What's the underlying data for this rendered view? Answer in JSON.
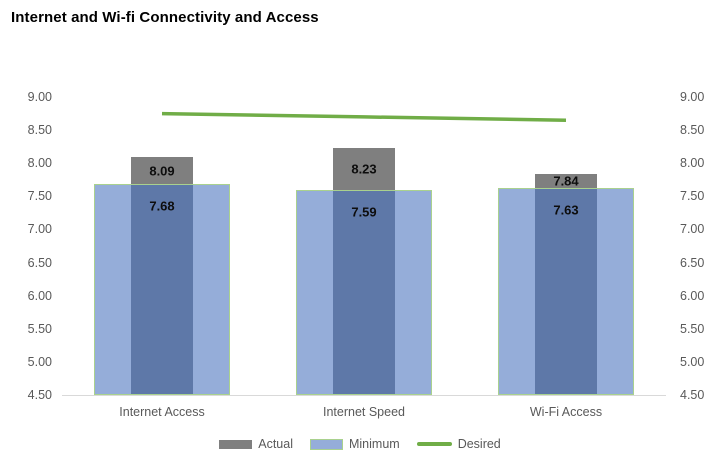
{
  "title": "Internet and Wi-fi Connectivity and Access",
  "chart_data": {
    "type": "bar",
    "title": "Internet and Wi-fi Connectivity and Access",
    "categories": [
      "Internet Access",
      "Internet Speed",
      "Wi-Fi Access"
    ],
    "series": [
      {
        "name": "Actual",
        "type": "bar",
        "values": [
          8.09,
          8.23,
          7.84
        ],
        "color": "#7f7f7f"
      },
      {
        "name": "Minimum",
        "type": "bar",
        "values": [
          7.68,
          7.59,
          7.63
        ],
        "color": "#95add9",
        "border_color": "#a9d18e",
        "overlap_color": "#5e78a8"
      },
      {
        "name": "Desired",
        "type": "line",
        "values": [
          8.75,
          8.7,
          8.65
        ],
        "color": "#70ad47"
      }
    ],
    "data_labels": {
      "Actual": [
        "8.09",
        "8.23",
        "7.84"
      ],
      "Minimum": [
        "7.68",
        "7.59",
        "7.63"
      ]
    },
    "y_axis": {
      "min": 4.5,
      "max": 9.0,
      "step": 0.5,
      "ticks": [
        "9.00",
        "8.50",
        "8.00",
        "7.50",
        "7.00",
        "6.50",
        "6.00",
        "5.50",
        "5.00",
        "4.50"
      ],
      "sides": "both",
      "label_color": "#595959"
    },
    "x_axis": {
      "line_color": "#d9d9d9"
    },
    "grid": false,
    "legend": {
      "position": "bottom",
      "entries": [
        "Actual",
        "Minimum",
        "Desired"
      ]
    }
  }
}
